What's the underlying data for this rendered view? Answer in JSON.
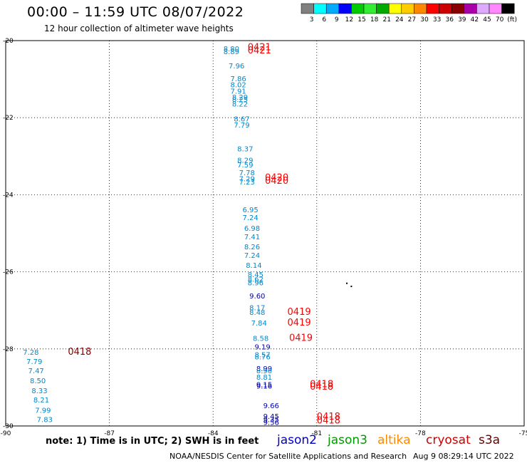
{
  "header": {
    "title": "00:00 – 11:59 UTC 08/07/2022",
    "subtitle": "12 hour collection of altimeter wave heights"
  },
  "colorbar": {
    "colors": [
      "#808080",
      "#00ffff",
      "#00aaff",
      "#0000ff",
      "#00cc00",
      "#33ee33",
      "#00aa00",
      "#ffff00",
      "#ffcc00",
      "#ff8800",
      "#ff0000",
      "#cc0000",
      "#880000",
      "#aa00aa",
      "#ddaaff",
      "#ff88ff",
      "#000000"
    ],
    "labels": [
      "3",
      "6",
      "9",
      "12",
      "15",
      "18",
      "21",
      "24",
      "27",
      "30",
      "33",
      "36",
      "39",
      "42",
      "45",
      "70",
      "(ft)"
    ]
  },
  "footer": {
    "note": "note:  1) Time is in UTC;  2) SWH is in feet",
    "credit": "NOAA/NESDIS Center for Satellite Applications and Research",
    "timestamp": "Aug  9 08:29:14 UTC 2022",
    "legend": [
      {
        "name": "jason2",
        "color": "#0000cc"
      },
      {
        "name": "jason3",
        "color": "#009900"
      },
      {
        "name": "altika",
        "color": "#ff8800"
      },
      {
        "name": "cryosat",
        "color": "#cc0000"
      },
      {
        "name": "s3a",
        "color": "#660000"
      }
    ]
  },
  "chart_data": {
    "type": "scatter",
    "xlim": [
      -90,
      -75
    ],
    "ylim": [
      -30,
      -20
    ],
    "xticks": [
      "-90",
      "-87",
      "-84",
      "-81",
      "-78",
      "-75"
    ],
    "yticks": [
      "-20",
      "-22",
      "-24",
      "-26",
      "-28",
      "-30"
    ],
    "grid": true,
    "labels": [
      {
        "x": -83.7,
        "y": -20.2,
        "text": "8.80",
        "color": "#0088cc"
      },
      {
        "x": -83.7,
        "y": -20.28,
        "text": "8.89",
        "color": "#0088cc"
      },
      {
        "x": -83.0,
        "y": -20.18,
        "text": "0421",
        "color": "#ff0000"
      },
      {
        "x": -83.0,
        "y": -20.26,
        "text": "0421",
        "color": "#ff0000"
      },
      {
        "x": -83.55,
        "y": -20.65,
        "text": "7.96",
        "color": "#0088cc"
      },
      {
        "x": -83.5,
        "y": -20.98,
        "text": "7.86",
        "color": "#0088cc"
      },
      {
        "x": -83.5,
        "y": -21.14,
        "text": "8.02",
        "color": "#0088cc"
      },
      {
        "x": -83.5,
        "y": -21.3,
        "text": "7.91",
        "color": "#0088cc"
      },
      {
        "x": -83.45,
        "y": -21.46,
        "text": "8.29",
        "color": "#0088cc"
      },
      {
        "x": -83.45,
        "y": -21.52,
        "text": "8.25",
        "color": "#0088cc"
      },
      {
        "x": -83.45,
        "y": -21.64,
        "text": "8.22",
        "color": "#0088cc"
      },
      {
        "x": -83.4,
        "y": -22.02,
        "text": "8.67",
        "color": "#0088cc"
      },
      {
        "x": -83.4,
        "y": -22.18,
        "text": "7.79",
        "color": "#0088cc"
      },
      {
        "x": -83.3,
        "y": -22.8,
        "text": "8.37",
        "color": "#0088cc"
      },
      {
        "x": -83.3,
        "y": -23.1,
        "text": "8.29",
        "color": "#0088cc"
      },
      {
        "x": -83.3,
        "y": -23.22,
        "text": "7.59",
        "color": "#0088cc"
      },
      {
        "x": -83.25,
        "y": -23.42,
        "text": "7.78",
        "color": "#0088cc"
      },
      {
        "x": -83.25,
        "y": -23.58,
        "text": "7.29",
        "color": "#0088cc"
      },
      {
        "x": -83.25,
        "y": -23.66,
        "text": "7.23",
        "color": "#0088cc"
      },
      {
        "x": -82.5,
        "y": -23.56,
        "text": "0420",
        "color": "#ff0000"
      },
      {
        "x": -82.5,
        "y": -23.64,
        "text": "0420",
        "color": "#ff0000"
      },
      {
        "x": -83.15,
        "y": -24.38,
        "text": "6.95",
        "color": "#0088cc"
      },
      {
        "x": -83.15,
        "y": -24.58,
        "text": "7.24",
        "color": "#0088cc"
      },
      {
        "x": -83.1,
        "y": -24.86,
        "text": "6.98",
        "color": "#0088cc"
      },
      {
        "x": -83.1,
        "y": -25.08,
        "text": "7.41",
        "color": "#0088cc"
      },
      {
        "x": -83.1,
        "y": -25.34,
        "text": "8.26",
        "color": "#0088cc"
      },
      {
        "x": -83.1,
        "y": -25.56,
        "text": "7.24",
        "color": "#0088cc"
      },
      {
        "x": -83.05,
        "y": -25.82,
        "text": "8.14",
        "color": "#0088cc"
      },
      {
        "x": -83.0,
        "y": -26.06,
        "text": "8.45",
        "color": "#0088cc"
      },
      {
        "x": -83.0,
        "y": -26.18,
        "text": "8.62",
        "color": "#0088cc"
      },
      {
        "x": -83.0,
        "y": -26.28,
        "text": "8.96",
        "color": "#0088cc"
      },
      {
        "x": -82.95,
        "y": -26.62,
        "text": "9.60",
        "color": "#0000aa"
      },
      {
        "x": -82.95,
        "y": -26.92,
        "text": "8.17",
        "color": "#0088cc"
      },
      {
        "x": -82.95,
        "y": -27.04,
        "text": "8.48",
        "color": "#0088cc"
      },
      {
        "x": -81.85,
        "y": -27.04,
        "text": "0419",
        "color": "#ff0000"
      },
      {
        "x": -82.9,
        "y": -27.32,
        "text": "7.84",
        "color": "#0088cc"
      },
      {
        "x": -81.85,
        "y": -27.32,
        "text": "0419",
        "color": "#ff0000"
      },
      {
        "x": -82.85,
        "y": -27.72,
        "text": "8.58",
        "color": "#0088cc"
      },
      {
        "x": -81.8,
        "y": -27.72,
        "text": "0419",
        "color": "#ff0000"
      },
      {
        "x": -82.8,
        "y": -27.94,
        "text": "9.19",
        "color": "#0000aa"
      },
      {
        "x": -82.8,
        "y": -28.14,
        "text": "8.57",
        "color": "#0088cc"
      },
      {
        "x": -82.8,
        "y": -28.2,
        "text": "8.76",
        "color": "#0088cc"
      },
      {
        "x": -82.75,
        "y": -28.5,
        "text": "8.99",
        "color": "#0000aa"
      },
      {
        "x": -82.75,
        "y": -28.56,
        "text": "8.90",
        "color": "#0088cc"
      },
      {
        "x": -82.75,
        "y": -28.72,
        "text": "8.81",
        "color": "#0088cc"
      },
      {
        "x": -82.75,
        "y": -28.92,
        "text": "9.15",
        "color": "#0000aa"
      },
      {
        "x": -82.75,
        "y": -28.96,
        "text": "9.16",
        "color": "#0000aa"
      },
      {
        "x": -81.2,
        "y": -28.92,
        "text": "0418",
        "color": "#ff0000"
      },
      {
        "x": -81.2,
        "y": -28.98,
        "text": "0418",
        "color": "#ff0000"
      },
      {
        "x": -82.55,
        "y": -29.46,
        "text": "9.66",
        "color": "#0000aa"
      },
      {
        "x": -82.55,
        "y": -29.74,
        "text": "9.45",
        "color": "#0000aa"
      },
      {
        "x": -82.55,
        "y": -29.82,
        "text": "9.35",
        "color": "#0000aa"
      },
      {
        "x": -82.55,
        "y": -29.9,
        "text": "9.56",
        "color": "#0000aa"
      },
      {
        "x": -81.0,
        "y": -29.76,
        "text": "0418",
        "color": "#ff0000"
      },
      {
        "x": -81.0,
        "y": -29.86,
        "text": "0418",
        "color": "#ff0000"
      },
      {
        "x": -89.5,
        "y": -28.08,
        "text": "7.28",
        "color": "#0088cc"
      },
      {
        "x": -88.2,
        "y": -28.08,
        "text": "0418",
        "color": "#880000"
      },
      {
        "x": -89.4,
        "y": -28.32,
        "text": "7.79",
        "color": "#0088cc"
      },
      {
        "x": -89.35,
        "y": -28.56,
        "text": "7.47",
        "color": "#0088cc"
      },
      {
        "x": -89.3,
        "y": -28.82,
        "text": "8.50",
        "color": "#0088cc"
      },
      {
        "x": -89.25,
        "y": -29.08,
        "text": "8.33",
        "color": "#0088cc"
      },
      {
        "x": -89.2,
        "y": -29.32,
        "text": "8.21",
        "color": "#0088cc"
      },
      {
        "x": -89.15,
        "y": -29.58,
        "text": "7.99",
        "color": "#0088cc"
      },
      {
        "x": -89.1,
        "y": -29.82,
        "text": "7.83",
        "color": "#0088cc"
      }
    ],
    "markers": [
      {
        "x": -80.15,
        "y": -26.28,
        "color": "#000000"
      },
      {
        "x": -80.02,
        "y": -26.36,
        "color": "#000000"
      }
    ]
  }
}
